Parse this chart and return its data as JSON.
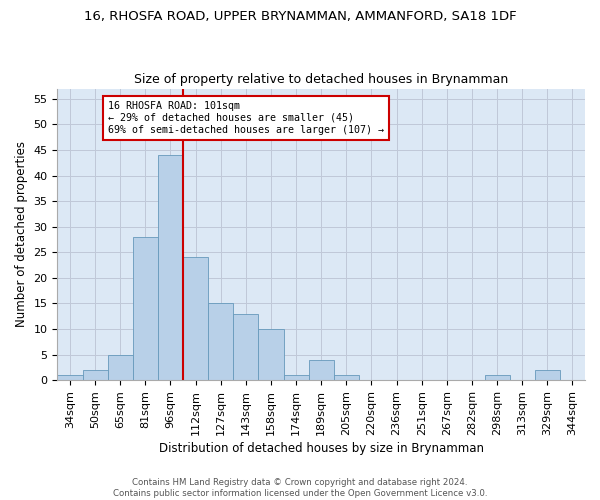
{
  "title": "16, RHOSFA ROAD, UPPER BRYNAMMAN, AMMANFORD, SA18 1DF",
  "subtitle": "Size of property relative to detached houses in Brynamman",
  "xlabel": "Distribution of detached houses by size in Brynamman",
  "ylabel": "Number of detached properties",
  "categories": [
    "34sqm",
    "50sqm",
    "65sqm",
    "81sqm",
    "96sqm",
    "112sqm",
    "127sqm",
    "143sqm",
    "158sqm",
    "174sqm",
    "189sqm",
    "205sqm",
    "220sqm",
    "236sqm",
    "251sqm",
    "267sqm",
    "282sqm",
    "298sqm",
    "313sqm",
    "329sqm",
    "344sqm"
  ],
  "values": [
    1,
    2,
    5,
    28,
    44,
    24,
    15,
    13,
    10,
    1,
    4,
    1,
    0,
    0,
    0,
    0,
    0,
    1,
    0,
    2,
    0
  ],
  "bar_color": "#b8d0e8",
  "bar_edge_color": "#6699bb",
  "red_line_index": 4.5,
  "red_line_color": "#cc0000",
  "annotation_text": "16 RHOSFA ROAD: 101sqm\n← 29% of detached houses are smaller (45)\n69% of semi-detached houses are larger (107) →",
  "annotation_box_color": "#ffffff",
  "annotation_box_edge_color": "#cc0000",
  "ylim": [
    0,
    57
  ],
  "yticks": [
    0,
    5,
    10,
    15,
    20,
    25,
    30,
    35,
    40,
    45,
    50,
    55
  ],
  "title_fontsize": 9.5,
  "subtitle_fontsize": 9,
  "xlabel_fontsize": 8.5,
  "ylabel_fontsize": 8.5,
  "tick_fontsize": 8,
  "footer_text": "Contains HM Land Registry data © Crown copyright and database right 2024.\nContains public sector information licensed under the Open Government Licence v3.0.",
  "background_color": "#ffffff",
  "axes_background_color": "#dce8f5",
  "grid_color": "#c0c8d8"
}
